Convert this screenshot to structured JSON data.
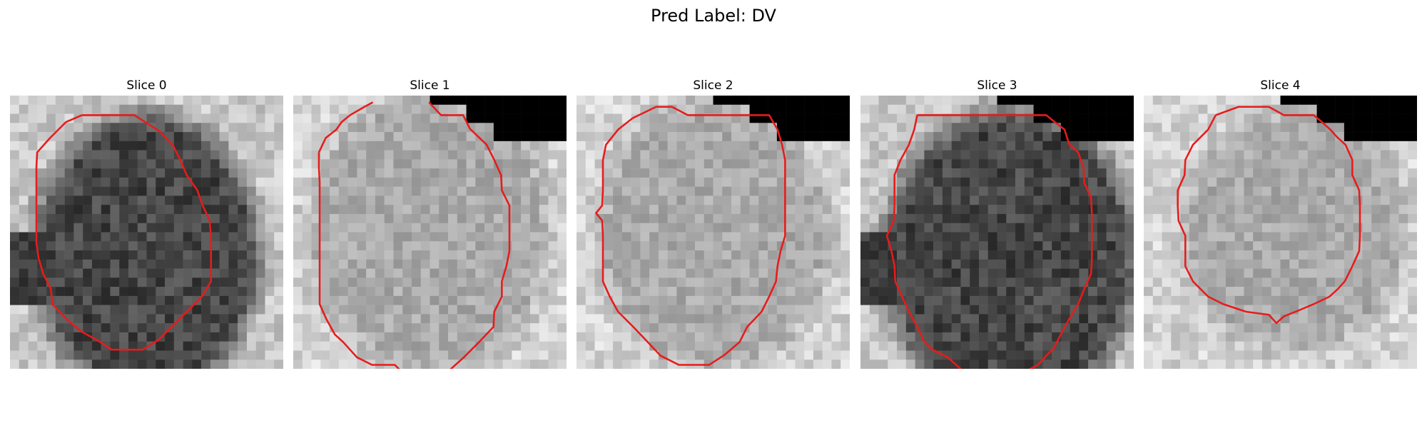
{
  "figure": {
    "title": "Pred Label: DV"
  },
  "slices": [
    {
      "title": "Slice 0",
      "tone": "dark",
      "contour_color": "#e81b1b",
      "contour": [
        [
          9.0,
          2.1
        ],
        [
          15.9,
          2.1
        ],
        [
          19.2,
          4.2
        ],
        [
          21.0,
          6.1
        ],
        [
          22.0,
          8.1
        ],
        [
          22.8,
          10.0
        ],
        [
          24.2,
          12.0
        ],
        [
          24.9,
          14.0
        ],
        [
          25.8,
          15.9
        ],
        [
          26.0,
          18.0
        ],
        [
          26.0,
          20.0
        ],
        [
          26.0,
          22.0
        ],
        [
          26.0,
          24.0
        ],
        [
          24.8,
          26.0
        ],
        [
          22.9,
          27.9
        ],
        [
          20.9,
          29.9
        ],
        [
          19.1,
          31.7
        ],
        [
          17.0,
          33.0
        ],
        [
          12.9,
          33.0
        ],
        [
          11.1,
          31.8
        ],
        [
          8.9,
          30.6
        ],
        [
          7.0,
          29.0
        ],
        [
          5.1,
          27.0
        ],
        [
          4.9,
          25.0
        ],
        [
          3.9,
          23.0
        ],
        [
          3.3,
          21.0
        ],
        [
          3.0,
          19.0
        ],
        [
          3.0,
          17.0
        ],
        [
          3.0,
          15.0
        ],
        [
          3.0,
          13.0
        ],
        [
          3.0,
          11.0
        ],
        [
          3.0,
          9.0
        ],
        [
          3.1,
          7.0
        ],
        [
          4.8,
          5.1
        ],
        [
          6.9,
          3.0
        ],
        [
          9.0,
          2.1
        ]
      ]
    },
    {
      "title": "Slice 1",
      "tone": "light",
      "contour_color": "#e81b1b",
      "contour": [
        [
          2.9,
          7.0
        ],
        [
          3.8,
          5.1
        ],
        [
          5.2,
          4.0
        ],
        [
          5.9,
          3.0
        ],
        [
          7.0,
          2.1
        ],
        [
          8.9,
          1.0
        ],
        [
          10.0,
          0.4
        ]
      ]
    },
    {
      "title": "Slice 2",
      "tone": "light",
      "contour_color": "#e81b1b",
      "contour": [
        [
          6.9,
          2.5
        ],
        [
          10.0,
          1.0
        ],
        [
          12.1,
          1.0
        ],
        [
          14.2,
          2.1
        ],
        [
          21.9,
          2.1
        ],
        [
          24.9,
          2.1
        ],
        [
          26.0,
          4.0
        ],
        [
          26.6,
          6.0
        ],
        [
          27.0,
          8.0
        ],
        [
          27.0,
          10.0
        ],
        [
          27.0,
          12.0
        ],
        [
          27.0,
          14.0
        ],
        [
          27.0,
          16.0
        ],
        [
          27.0,
          18.0
        ],
        [
          26.4,
          20.0
        ],
        [
          26.0,
          22.0
        ],
        [
          25.8,
          24.0
        ],
        [
          24.9,
          26.0
        ],
        [
          23.9,
          28.0
        ],
        [
          22.0,
          30.0
        ],
        [
          21.0,
          32.0
        ],
        [
          19.0,
          33.7
        ],
        [
          17.0,
          35.0
        ],
        [
          13.0,
          35.0
        ],
        [
          10.6,
          33.8
        ],
        [
          8.9,
          32.0
        ],
        [
          7.0,
          30.0
        ],
        [
          5.0,
          28.0
        ],
        [
          3.9,
          26.0
        ],
        [
          3.0,
          24.0
        ],
        [
          3.0,
          22.0
        ],
        [
          3.0,
          20.0
        ],
        [
          3.0,
          18.0
        ],
        [
          2.9,
          16.0
        ],
        [
          2.1,
          15.0
        ],
        [
          2.9,
          14.0
        ],
        [
          3.0,
          12.0
        ],
        [
          3.0,
          10.0
        ],
        [
          3.0,
          8.0
        ],
        [
          3.4,
          6.0
        ],
        [
          5.0,
          4.0
        ],
        [
          6.9,
          2.5
        ]
      ]
    },
    {
      "title": "Slice 3",
      "tone": "dark",
      "contour_color": "#e81b1b",
      "contour": [
        [
          7.0,
          2.1
        ],
        [
          11.0,
          2.1
        ],
        [
          24.0,
          2.1
        ],
        [
          25.1,
          3.0
        ],
        [
          26.4,
          4.0
        ],
        [
          27.0,
          5.9
        ],
        [
          28.2,
          7.0
        ],
        [
          28.9,
          9.0
        ],
        [
          29.0,
          11.0
        ],
        [
          29.9,
          13.0
        ],
        [
          30.0,
          15.0
        ],
        [
          30.0,
          17.0
        ],
        [
          30.0,
          19.0
        ],
        [
          30.0,
          21.0
        ],
        [
          29.9,
          23.0
        ],
        [
          29.0,
          25.0
        ],
        [
          28.2,
          27.0
        ],
        [
          27.0,
          29.0
        ],
        [
          25.9,
          31.0
        ],
        [
          25.0,
          32.8
        ],
        [
          24.0,
          33.8
        ],
        [
          22.9,
          35.0
        ],
        [
          21.0,
          36.0
        ],
        [
          15.0,
          36.0
        ],
        [
          12.9,
          35.7
        ],
        [
          11.0,
          34.0
        ],
        [
          9.0,
          33.0
        ],
        [
          7.9,
          31.9
        ],
        [
          7.0,
          30.0
        ],
        [
          5.9,
          28.0
        ],
        [
          5.0,
          26.0
        ],
        [
          4.1,
          24.0
        ],
        [
          4.0,
          22.0
        ],
        [
          3.6,
          20.0
        ],
        [
          3.0,
          18.0
        ],
        [
          3.9,
          16.0
        ],
        [
          4.0,
          14.0
        ],
        [
          4.0,
          12.0
        ],
        [
          4.0,
          10.0
        ],
        [
          4.8,
          8.0
        ],
        [
          5.9,
          6.0
        ],
        [
          6.6,
          4.0
        ],
        [
          7.0,
          2.1
        ]
      ]
    },
    {
      "title": "Slice 4",
      "tone": "light",
      "contour_color": "#e81b1b",
      "contour": [
        [
          9.0,
          2.1
        ],
        [
          12.0,
          1.0
        ],
        [
          16.0,
          1.0
        ],
        [
          18.0,
          2.1
        ],
        [
          21.9,
          2.1
        ],
        [
          23.0,
          3.0
        ],
        [
          24.1,
          4.0
        ],
        [
          25.0,
          5.0
        ],
        [
          26.1,
          6.0
        ],
        [
          27.0,
          8.0
        ],
        [
          27.0,
          10.0
        ],
        [
          27.9,
          12.0
        ],
        [
          28.0,
          14.0
        ],
        [
          28.0,
          16.0
        ],
        [
          28.0,
          18.0
        ],
        [
          27.9,
          20.0
        ],
        [
          27.0,
          22.0
        ],
        [
          26.0,
          24.0
        ],
        [
          25.1,
          25.0
        ],
        [
          24.0,
          26.0
        ],
        [
          21.9,
          27.0
        ],
        [
          20.0,
          27.8
        ],
        [
          18.0,
          28.6
        ],
        [
          17.0,
          29.5
        ],
        [
          16.0,
          28.4
        ],
        [
          13.0,
          28.0
        ],
        [
          10.0,
          27.0
        ],
        [
          8.0,
          26.0
        ],
        [
          6.0,
          24.0
        ],
        [
          5.0,
          22.0
        ],
        [
          5.0,
          20.0
        ],
        [
          5.0,
          18.0
        ],
        [
          4.1,
          16.0
        ],
        [
          4.0,
          14.0
        ],
        [
          4.0,
          12.0
        ],
        [
          4.9,
          10.0
        ],
        [
          5.0,
          8.0
        ],
        [
          6.0,
          6.0
        ],
        [
          7.0,
          5.0
        ],
        [
          8.0,
          4.0
        ],
        [
          9.0,
          2.1
        ]
      ]
    }
  ]
}
